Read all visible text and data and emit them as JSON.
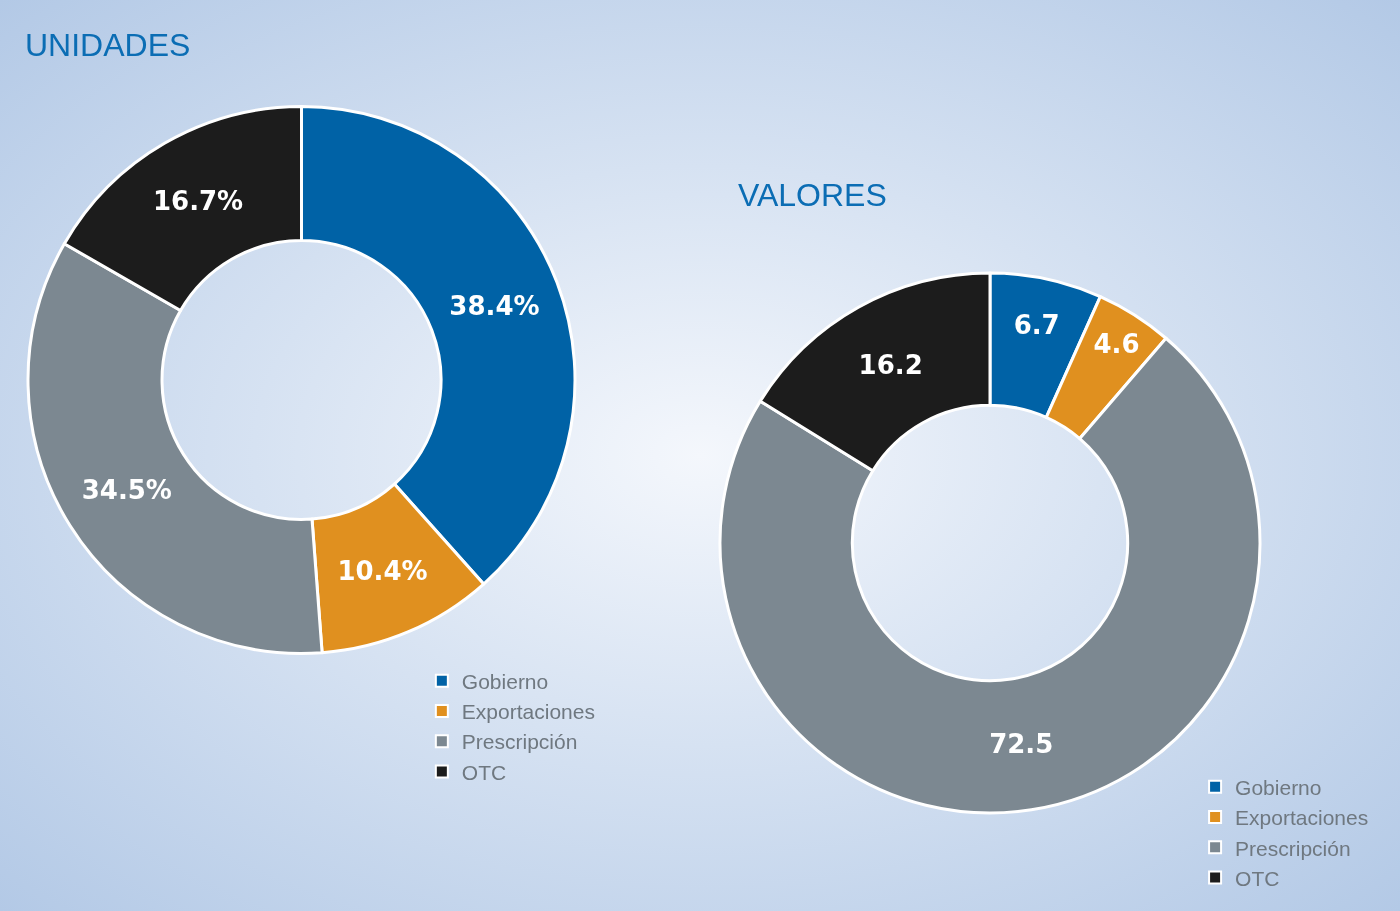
{
  "chart_data": [
    {
      "type": "donut",
      "title": "UNIDADES",
      "categories": [
        "Gobierno",
        "Exportaciones",
        "Prescripción",
        "OTC"
      ],
      "values": [
        38.4,
        10.4,
        34.5,
        16.7
      ],
      "colors": [
        "#0062a6",
        "#e0901f",
        "#7c8891",
        "#1c1c1c"
      ],
      "value_labels": [
        "38.4%",
        "10.4%",
        "34.5%",
        "16.7%"
      ],
      "legend": "bottom right"
    },
    {
      "type": "donut",
      "title": "VALORES",
      "categories": [
        "Gobierno",
        "Exportaciones",
        "Prescripción",
        "OTC"
      ],
      "values": [
        6.7,
        4.6,
        72.5,
        16.2
      ],
      "colors": [
        "#0062a6",
        "#e0901f",
        "#7c8891",
        "#1c1c1c"
      ],
      "value_labels": [
        "6.7",
        "4.6",
        "72.5",
        "16.2"
      ],
      "legend": "bottom right"
    }
  ]
}
